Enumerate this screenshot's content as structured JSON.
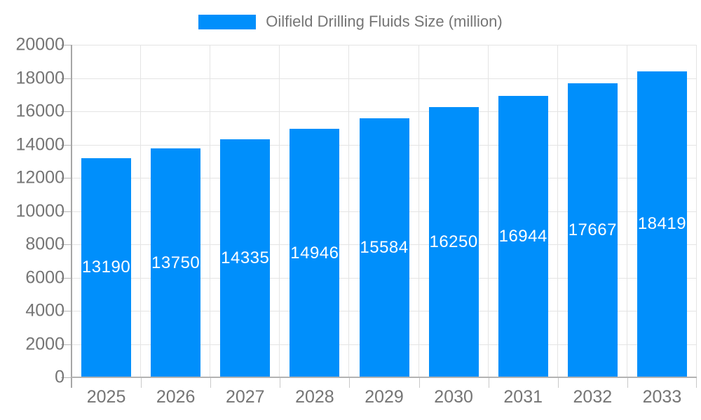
{
  "chart_data": {
    "type": "bar",
    "title": "Oilfield Drilling Fluids Size (million)",
    "categories": [
      "2025",
      "2026",
      "2027",
      "2028",
      "2029",
      "2030",
      "2031",
      "2032",
      "2033"
    ],
    "values": [
      13190,
      13750,
      14335,
      14946,
      15584,
      16250,
      16944,
      17667,
      18419
    ],
    "series": [
      {
        "name": "Oilfield Drilling Fluids Size (million)",
        "values": [
          13190,
          13750,
          14335,
          14946,
          15584,
          16250,
          16944,
          17667,
          18419
        ]
      }
    ],
    "xlabel": "",
    "ylabel": "",
    "ylim": [
      0,
      20000
    ],
    "ytick_step": 2000,
    "grid": true,
    "legend_position": "top",
    "value_labels": "inside-center",
    "colors": {
      "bar": "#008FFB",
      "axis_label": "#757575",
      "legend_text": "#757575",
      "value_label": "#ffffff",
      "grid": "#e4e4e4",
      "y_axis": "#a6a6a6",
      "x_axis": "#b3b3b3",
      "y_tick": "#b6b6b6",
      "category_tick": "#c9c9c9"
    }
  }
}
